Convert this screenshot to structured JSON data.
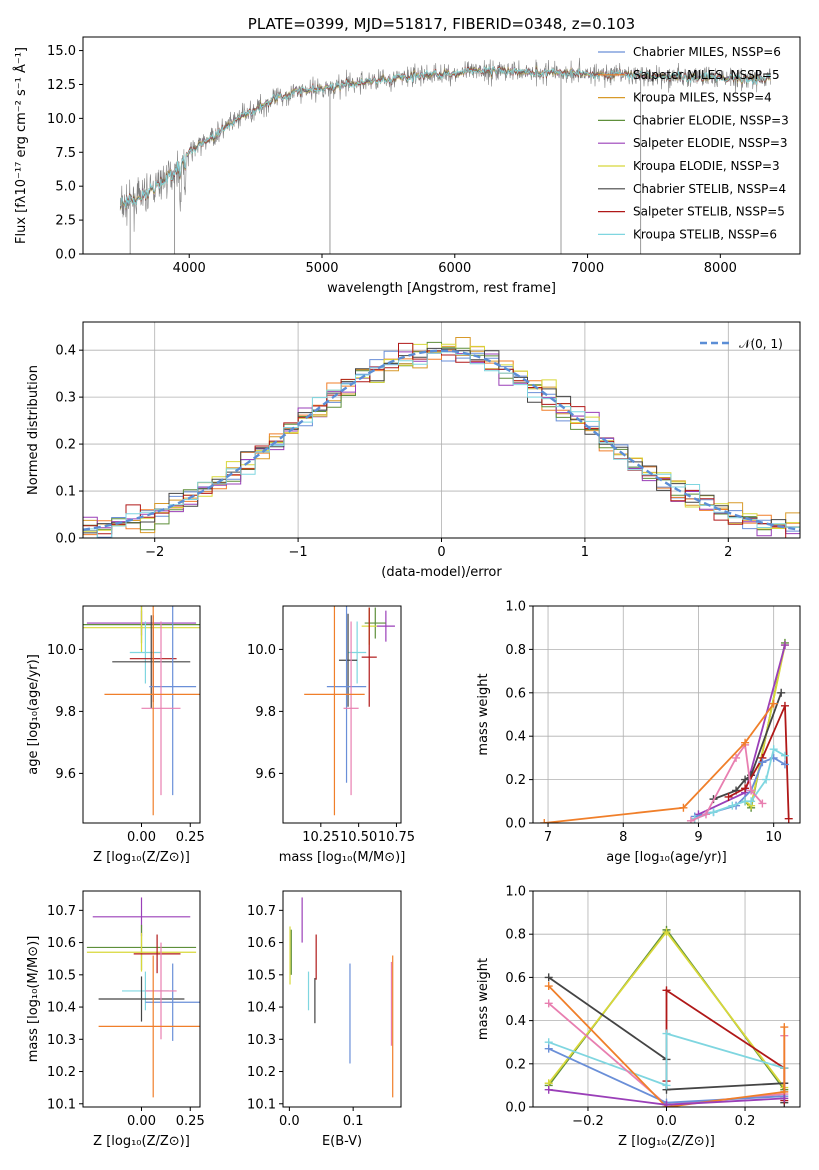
{
  "chart_data": [
    {
      "panel": "spectrum",
      "type": "line",
      "title": "PLATE=0399, MJD=51817, FIBERID=0348, z=0.103",
      "xlabel": "wavelength [Angstrom, rest frame]",
      "ylabel": "Flux [fλ10⁻¹⁷ erg cm⁻² s⁻¹ Å⁻¹]",
      "xlim": [
        3200,
        8600
      ],
      "ylim": [
        0,
        16
      ],
      "xticks": [
        "4000",
        "5000",
        "6000",
        "7000",
        "8000"
      ],
      "yticks": [
        "0.0",
        "2.5",
        "5.0",
        "7.5",
        "10.0",
        "12.5",
        "15.0"
      ],
      "grid": false,
      "legend_position": "right",
      "series": [
        {
          "name": "Chabrier MILES, N_SSP=6",
          "color": "#6a8fd8"
        },
        {
          "name": "Salpeter MILES, N_SSP=5",
          "color": "#f07f2a"
        },
        {
          "name": "Kroupa MILES, N_SSP=4",
          "color": "#d89a2a"
        },
        {
          "name": "Chabrier ELODIE, N_SSP=3",
          "color": "#5e8f3a"
        },
        {
          "name": "Salpeter ELODIE, N_SSP=3",
          "color": "#9a3fb8"
        },
        {
          "name": "Kroupa ELODIE, N_SSP=3",
          "color": "#d8d83a"
        },
        {
          "name": "Chabrier STELIB, N_SSP=4",
          "color": "#444444"
        },
        {
          "name": "Salpeter STELIB, N_SSP=5",
          "color": "#b01818"
        },
        {
          "name": "Kroupa STELIB, N_SSP=6",
          "color": "#7fd6e0"
        }
      ],
      "data_color": "#808080",
      "continuum_x": [
        3480,
        3600,
        3700,
        3800,
        3900,
        4000,
        4200,
        4400,
        4600,
        4800,
        5000,
        5200,
        5400,
        5600,
        5800,
        6000,
        6200,
        6400,
        6600,
        6800,
        7000,
        7200,
        7400,
        7600,
        7800,
        8000,
        8200,
        8380
      ],
      "continuum_y": [
        3.5,
        4.0,
        4.6,
        5.4,
        6.2,
        7.5,
        8.8,
        10.2,
        11.2,
        12.0,
        12.2,
        12.5,
        12.8,
        13.0,
        13.2,
        13.3,
        13.5,
        13.5,
        13.4,
        13.4,
        13.3,
        13.2,
        13.2,
        13.1,
        13.0,
        13.0,
        12.9,
        12.9
      ]
    },
    {
      "panel": "residuals",
      "type": "histogram",
      "xlabel": "(data-model)/error",
      "ylabel": "Normed distribution",
      "xlim": [
        -2.5,
        2.5
      ],
      "ylim": [
        0,
        0.46
      ],
      "xticks": [
        "−2",
        "−1",
        "0",
        "1",
        "2"
      ],
      "yticks": [
        "0.0",
        "0.1",
        "0.2",
        "0.3",
        "0.4"
      ],
      "grid": true,
      "legend_entry": "𝒩(0, 1)",
      "gaussian_color": "#5b8ed6",
      "bin_width": 0.1
    },
    {
      "panel": "age_vs_Z",
      "type": "scatter",
      "xlabel": "Z [log₁₀(Z/Z⊙)]",
      "ylabel": "age  [log₁₀(age/yr)]",
      "xlim": [
        -0.3,
        0.3
      ],
      "ylim": [
        9.44,
        10.14
      ],
      "xticks": [
        "0.00",
        "0.25"
      ],
      "yticks": [
        "9.6",
        "9.8",
        "10.0"
      ],
      "grid": false,
      "points": [
        {
          "x": 0.0,
          "y": 10.08,
          "xerr": 0.3,
          "yerr": 0.06,
          "color": "#5e8f3a"
        },
        {
          "x": 0.0,
          "y": 10.085,
          "xerr": 0.28,
          "yerr": 0.04,
          "color": "#9a3fb8"
        },
        {
          "x": 0.0,
          "y": 10.07,
          "xerr": 0.3,
          "yerr": 0.08,
          "color": "#d8d83a"
        },
        {
          "x": 0.02,
          "y": 9.99,
          "xerr": 0.08,
          "yerr": 0.1,
          "color": "#7fd6e0"
        },
        {
          "x": 0.06,
          "y": 9.97,
          "xerr": 0.12,
          "yerr": 0.14,
          "color": "#b01818"
        },
        {
          "x": 0.05,
          "y": 9.96,
          "xerr": 0.2,
          "yerr": 0.15,
          "color": "#444444"
        },
        {
          "x": 0.16,
          "y": 9.88,
          "xerr": 0.12,
          "yerr": 0.35,
          "color": "#6a8fd8"
        },
        {
          "x": 0.1,
          "y": 9.81,
          "xerr": 0.1,
          "yerr": 0.28,
          "color": "#e87fb0"
        },
        {
          "x": 0.06,
          "y": 9.855,
          "xerr": 0.25,
          "yerr": 0.39,
          "color": "#f07f2a"
        }
      ]
    },
    {
      "panel": "age_vs_mass",
      "type": "scatter",
      "xlabel": "mass [log₁₀(M/M⊙)]",
      "ylabel": "",
      "xlim": [
        10.0,
        10.78
      ],
      "ylim": [
        9.44,
        10.14
      ],
      "xticks": [
        "10.25",
        "10.50",
        "10.75"
      ],
      "yticks": [
        "9.6",
        "9.8",
        "10.0"
      ],
      "grid": false,
      "points": [
        {
          "x": 10.68,
          "y": 10.075,
          "xerr": 0.06,
          "yerr": 0.05,
          "color": "#9a3fb8"
        },
        {
          "x": 10.61,
          "y": 10.085,
          "xerr": 0.07,
          "yerr": 0.05,
          "color": "#5e8f3a"
        },
        {
          "x": 10.57,
          "y": 10.075,
          "xerr": 0.05,
          "yerr": 0.06,
          "color": "#d8d83a"
        },
        {
          "x": 10.49,
          "y": 9.99,
          "xerr": 0.06,
          "yerr": 0.1,
          "color": "#7fd6e0"
        },
        {
          "x": 10.57,
          "y": 9.975,
          "xerr": 0.05,
          "yerr": 0.16,
          "color": "#b01818"
        },
        {
          "x": 10.43,
          "y": 9.965,
          "xerr": 0.06,
          "yerr": 0.15,
          "color": "#444444"
        },
        {
          "x": 10.42,
          "y": 9.88,
          "xerr": 0.13,
          "yerr": 0.31,
          "color": "#6a8fd8"
        },
        {
          "x": 10.45,
          "y": 9.81,
          "xerr": 0.05,
          "yerr": 0.28,
          "color": "#e87fb0"
        },
        {
          "x": 10.34,
          "y": 9.855,
          "xerr": 0.2,
          "yerr": 0.39,
          "color": "#f07f2a"
        }
      ]
    },
    {
      "panel": "mass_weight_vs_age",
      "type": "line",
      "xlabel": "age  [log₁₀(age/yr)]",
      "ylabel": "mass weight",
      "xlim": [
        6.8,
        10.35
      ],
      "ylim": [
        0,
        1.0
      ],
      "xticks": [
        "7",
        "8",
        "9",
        "10"
      ],
      "yticks": [
        "0.0",
        "0.2",
        "0.4",
        "0.6",
        "0.8",
        "1.0"
      ],
      "grid": true,
      "series": [
        {
          "color": "#5e8f3a",
          "x": [
            9.62,
            9.7,
            10.15
          ],
          "y": [
            0.1,
            0.07,
            0.83
          ]
        },
        {
          "color": "#d8d83a",
          "x": [
            9.62,
            9.7,
            10.15
          ],
          "y": [
            0.1,
            0.08,
            0.82
          ]
        },
        {
          "color": "#9a3fb8",
          "x": [
            9.0,
            9.62,
            10.15
          ],
          "y": [
            0.04,
            0.14,
            0.82
          ]
        },
        {
          "color": "#444444",
          "x": [
            9.2,
            9.5,
            9.62,
            9.7,
            10.1
          ],
          "y": [
            0.11,
            0.15,
            0.2,
            0.22,
            0.6
          ]
        },
        {
          "color": "#b01818",
          "x": [
            9.4,
            9.62,
            9.85,
            10.15,
            10.2
          ],
          "y": [
            0.12,
            0.16,
            0.3,
            0.54,
            0.02
          ]
        },
        {
          "color": "#6a8fd8",
          "x": [
            8.95,
            9.2,
            9.5,
            9.7,
            9.85,
            10.0,
            10.15
          ],
          "y": [
            0.03,
            0.05,
            0.08,
            0.15,
            0.28,
            0.3,
            0.27
          ]
        },
        {
          "color": "#7fd6e0",
          "x": [
            8.95,
            9.2,
            9.45,
            9.62,
            9.7,
            9.9,
            10.0,
            10.15
          ],
          "y": [
            0.02,
            0.05,
            0.08,
            0.1,
            0.1,
            0.2,
            0.34,
            0.31
          ]
        },
        {
          "color": "#e87fb0",
          "x": [
            8.9,
            9.1,
            9.5,
            9.62,
            9.7,
            9.85
          ],
          "y": [
            0.01,
            0.04,
            0.3,
            0.36,
            0.15,
            0.09
          ]
        },
        {
          "color": "#f07f2a",
          "x": [
            6.95,
            8.8,
            9.62,
            10.0
          ],
          "y": [
            0.0,
            0.07,
            0.37,
            0.55
          ]
        }
      ]
    },
    {
      "panel": "mass_vs_Z",
      "type": "scatter",
      "xlabel": "Z [log₁₀(Z/Z⊙)]",
      "ylabel": "mass [log₁₀(M/M⊙)]",
      "xlim": [
        -0.3,
        0.3
      ],
      "ylim": [
        10.09,
        10.76
      ],
      "xticks": [
        "0.00",
        "0.25"
      ],
      "yticks": [
        "10.1",
        "10.2",
        "10.3",
        "10.4",
        "10.5",
        "10.6",
        "10.7"
      ],
      "grid": false,
      "points": [
        {
          "x": 0.0,
          "y": 10.68,
          "xerr": 0.25,
          "yerr": 0.06,
          "color": "#9a3fb8"
        },
        {
          "x": 0.0,
          "y": 10.585,
          "xerr": 0.28,
          "yerr": 0.07,
          "color": "#5e8f3a"
        },
        {
          "x": 0.0,
          "y": 10.57,
          "xerr": 0.28,
          "yerr": 0.06,
          "color": "#d8d83a"
        },
        {
          "x": 0.08,
          "y": 10.565,
          "xerr": 0.12,
          "yerr": 0.06,
          "color": "#b01818"
        },
        {
          "x": 0.02,
          "y": 10.45,
          "xerr": 0.12,
          "yerr": 0.06,
          "color": "#7fd6e0"
        },
        {
          "x": 0.0,
          "y": 10.425,
          "xerr": 0.22,
          "yerr": 0.07,
          "color": "#444444"
        },
        {
          "x": 0.16,
          "y": 10.415,
          "xerr": 0.14,
          "yerr": 0.12,
          "color": "#6a8fd8"
        },
        {
          "x": 0.1,
          "y": 10.45,
          "xerr": 0.08,
          "yerr": 0.15,
          "color": "#e87fb0"
        },
        {
          "x": 0.06,
          "y": 10.34,
          "xerr": 0.28,
          "yerr": 0.22,
          "color": "#f07f2a"
        }
      ]
    },
    {
      "panel": "mass_vs_ebv",
      "type": "scatter",
      "xlabel": "E(B-V)",
      "ylabel": "",
      "xlim": [
        -0.01,
        0.175
      ],
      "ylim": [
        10.09,
        10.76
      ],
      "xticks": [
        "0.0",
        "0.1"
      ],
      "yticks": [
        "10.1",
        "10.2",
        "10.3",
        "10.4",
        "10.5",
        "10.6",
        "10.7"
      ],
      "grid": false,
      "points": [
        {
          "x": 0.001,
          "y": 10.56,
          "yerr": 0.09,
          "color": "#d8d83a"
        },
        {
          "x": 0.003,
          "y": 10.57,
          "yerr": 0.07,
          "color": "#5e8f3a"
        },
        {
          "x": 0.02,
          "y": 10.67,
          "yerr": 0.07,
          "color": "#9a3fb8"
        },
        {
          "x": 0.03,
          "y": 10.45,
          "yerr": 0.06,
          "color": "#7fd6e0"
        },
        {
          "x": 0.04,
          "y": 10.42,
          "yerr": 0.07,
          "color": "#444444"
        },
        {
          "x": 0.042,
          "y": 10.555,
          "yerr": 0.07,
          "color": "#b01818"
        },
        {
          "x": 0.095,
          "y": 10.38,
          "yerr": 0.155,
          "color": "#6a8fd8"
        },
        {
          "x": 0.16,
          "y": 10.41,
          "yerr": 0.13,
          "color": "#e87fb0"
        },
        {
          "x": 0.162,
          "y": 10.34,
          "yerr": 0.22,
          "color": "#f07f2a"
        }
      ]
    },
    {
      "panel": "mass_weight_vs_Z",
      "type": "line",
      "xlabel": "Z [log₁₀(Z/Z⊙)]",
      "ylabel": "mass weight",
      "xlim": [
        -0.34,
        0.34
      ],
      "ylim": [
        0,
        1.0
      ],
      "xticks": [
        "−0.2",
        "0.0",
        "0.2"
      ],
      "yticks": [
        "0.0",
        "0.2",
        "0.4",
        "0.6",
        "0.8",
        "1.0"
      ],
      "grid": true,
      "series": [
        {
          "color": "#5e8f3a",
          "x": [
            -0.3,
            0.0,
            0.3
          ],
          "y": [
            0.1,
            0.82,
            0.08
          ]
        },
        {
          "color": "#d8d83a",
          "x": [
            -0.3,
            0.0,
            0.3
          ],
          "y": [
            0.11,
            0.81,
            0.09
          ]
        },
        {
          "color": "#444444",
          "x": [
            -0.3,
            0.0,
            0.0,
            0.3,
            0.3
          ],
          "y": [
            0.6,
            0.22,
            0.08,
            0.11,
            0.02
          ]
        },
        {
          "color": "#b01818",
          "x": [
            0.0,
            0.0,
            0.3,
            0.3
          ],
          "y": [
            0.12,
            0.54,
            0.18,
            0.03
          ]
        },
        {
          "color": "#7fd6e0",
          "x": [
            -0.3,
            0.0,
            0.0,
            0.3
          ],
          "y": [
            0.3,
            0.1,
            0.34,
            0.18
          ]
        },
        {
          "color": "#e87fb0",
          "x": [
            -0.3,
            0.0,
            0.3,
            0.3
          ],
          "y": [
            0.48,
            0.01,
            0.06,
            0.33
          ]
        },
        {
          "color": "#6a8fd8",
          "x": [
            -0.3,
            0.0,
            0.3
          ],
          "y": [
            0.27,
            0.02,
            0.05
          ]
        },
        {
          "color": "#f07f2a",
          "x": [
            -0.3,
            0.0,
            0.3,
            0.3
          ],
          "y": [
            0.56,
            0.0,
            0.07,
            0.37
          ]
        },
        {
          "color": "#9a3fb8",
          "x": [
            -0.3,
            0.0,
            0.3
          ],
          "y": [
            0.08,
            0.01,
            0.04
          ]
        }
      ]
    }
  ]
}
